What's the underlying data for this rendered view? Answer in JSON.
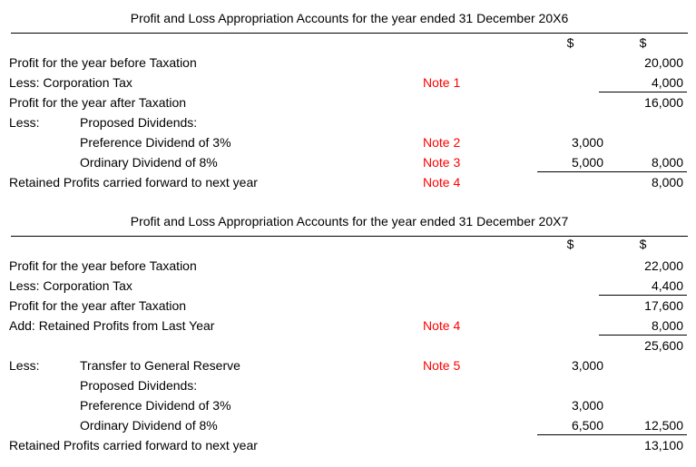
{
  "colors": {
    "note_text": "#ff0000",
    "body_text": "#000000",
    "rule": "#000000"
  },
  "accounts": [
    {
      "title": "Profit and Loss Appropriation Accounts for the year ended 31 December 20X6",
      "col1_header": "$",
      "col2_header": "$",
      "rows": [
        {
          "label1": "Profit for the year before Taxation",
          "col2": "20,000"
        },
        {
          "label1": "Less: Corporation Tax",
          "note": "Note 1",
          "col2": "4,000",
          "border": "col2"
        },
        {
          "label1": "Profit for the year after Taxation",
          "col2": "16,000"
        },
        {
          "label1": "Less:",
          "label2": "Proposed Dividends:"
        },
        {
          "label2": "Preference Dividend of 3%",
          "note": "Note 2",
          "col1": "3,000"
        },
        {
          "label2": "Ordinary Dividend of 8%",
          "note": "Note 3",
          "col1": "5,000",
          "col2": "8,000",
          "border": "both"
        },
        {
          "label1": "Retained Profits carried forward to next year",
          "note": "Note 4",
          "col2": "8,000"
        }
      ]
    },
    {
      "title": "Profit and Loss Appropriation Accounts for the year ended 31 December 20X7",
      "col1_header": "$",
      "col2_header": "$",
      "rows": [
        {
          "label1": "Profit for the year before Taxation",
          "col2": "22,000"
        },
        {
          "label1": "Less: Corporation Tax",
          "col2": "4,400",
          "border": "col2"
        },
        {
          "label1": "Profit for the year after Taxation",
          "col2": "17,600"
        },
        {
          "label1": "Add: Retained Profits from Last Year",
          "note": "Note 4",
          "col2": "8,000",
          "border": "col2"
        },
        {
          "col2": "25,600"
        },
        {
          "label1": "Less:",
          "label2": "Transfer to General Reserve",
          "note": "Note 5",
          "col1": "3,000"
        },
        {
          "label2": "Proposed Dividends:"
        },
        {
          "label2": "Preference Dividend of 3%",
          "col1": "3,000"
        },
        {
          "label2": "Ordinary Dividend of 8%",
          "col1": "6,500",
          "col2": "12,500",
          "border": "both"
        },
        {
          "label1": "Retained Profits carried forward to next year",
          "col2": "13,100"
        }
      ]
    }
  ]
}
